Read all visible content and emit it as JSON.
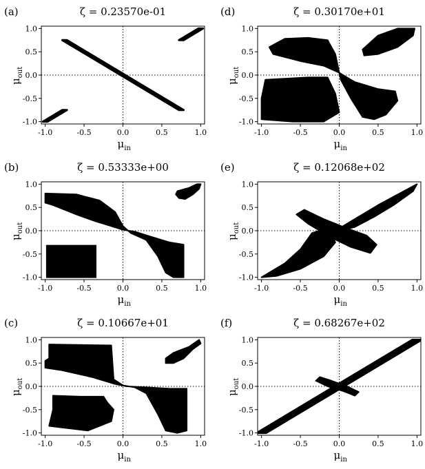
{
  "chart_data": [
    {
      "panel": "(a)",
      "type": "scatter",
      "title": "ζ = 0.23570e-01",
      "xlabel": "μ",
      "xlabel_sub": "in",
      "ylabel": "μ",
      "ylabel_sub": "out",
      "xlim": [
        -1.05,
        1.05
      ],
      "ylim": [
        -1.05,
        1.05
      ],
      "xticks": [
        -1.0,
        -0.5,
        0.0,
        0.5,
        1.0
      ],
      "yticks": [
        -1.0,
        -0.5,
        0.0,
        0.5,
        1.0
      ],
      "xtick_labels": [
        "-1.0",
        "-0.5",
        "0.0",
        "0.5",
        "1.0"
      ],
      "ytick_labels": [
        "-1.0",
        "-0.5",
        "0.0",
        "0.5",
        "1.0"
      ],
      "reference_lines": {
        "x": 0,
        "y": 0,
        "style": "dotted"
      },
      "regions": [
        {
          "kind": "band",
          "x": [
            -0.75,
            0.75
          ],
          "y": [
            0.75,
            -0.75
          ],
          "thickness": 0.06
        },
        {
          "kind": "band",
          "x": [
            0.75,
            1.0
          ],
          "y": [
            0.75,
            1.0
          ],
          "thickness": 0.06
        },
        {
          "kind": "band",
          "x": [
            -1.0,
            -0.75
          ],
          "y": [
            -1.0,
            -0.75
          ],
          "thickness": 0.06
        }
      ]
    },
    {
      "panel": "(b)",
      "type": "scatter",
      "title": "ζ = 0.53333e+00",
      "xlabel": "μ",
      "xlabel_sub": "in",
      "ylabel": "μ",
      "ylabel_sub": "out",
      "xlim": [
        -1.05,
        1.05
      ],
      "ylim": [
        -1.05,
        1.05
      ],
      "xticks": [
        -1.0,
        -0.5,
        0.0,
        0.5,
        1.0
      ],
      "yticks": [
        -1.0,
        -0.5,
        0.0,
        0.5,
        1.0
      ],
      "xtick_labels": [
        "-1.0",
        "-0.5",
        "0.0",
        "0.5",
        "1.0"
      ],
      "ytick_labels": [
        "-1.0",
        "-0.5",
        "0.0",
        "0.5",
        "1.0"
      ],
      "reference_lines": {
        "x": 0,
        "y": 0,
        "style": "dotted"
      },
      "regions": [
        {
          "kind": "polygon",
          "points": [
            [
              -1.0,
              0.8
            ],
            [
              -0.6,
              0.78
            ],
            [
              -0.3,
              0.65
            ],
            [
              -0.1,
              0.4
            ],
            [
              0.0,
              0.1
            ],
            [
              0.1,
              -0.05
            ],
            [
              0.3,
              -0.2
            ],
            [
              0.45,
              -0.55
            ],
            [
              0.55,
              -0.9
            ],
            [
              0.65,
              -1.0
            ],
            [
              0.78,
              -1.0
            ],
            [
              0.78,
              -0.3
            ],
            [
              0.6,
              -0.25
            ],
            [
              0.4,
              -0.15
            ],
            [
              0.15,
              -0.02
            ],
            [
              0.0,
              0.02
            ],
            [
              -0.15,
              0.1
            ],
            [
              -0.35,
              0.2
            ],
            [
              -0.6,
              0.35
            ],
            [
              -0.9,
              0.55
            ],
            [
              -1.0,
              0.6
            ]
          ]
        },
        {
          "kind": "rect",
          "x": [
            -0.98,
            -0.35
          ],
          "y": [
            -1.0,
            -0.32
          ]
        },
        {
          "kind": "polygon",
          "points": [
            [
              0.7,
              0.85
            ],
            [
              0.85,
              0.92
            ],
            [
              0.95,
              1.0
            ],
            [
              1.0,
              1.0
            ],
            [
              0.98,
              0.9
            ],
            [
              0.9,
              0.78
            ],
            [
              0.8,
              0.68
            ],
            [
              0.72,
              0.7
            ],
            [
              0.68,
              0.78
            ]
          ]
        }
      ]
    },
    {
      "panel": "(c)",
      "type": "scatter",
      "title": "ζ = 0.10667e+01",
      "xlabel": "μ",
      "xlabel_sub": "in",
      "ylabel": "μ",
      "ylabel_sub": "out",
      "xlim": [
        -1.05,
        1.05
      ],
      "ylim": [
        -1.05,
        1.05
      ],
      "xticks": [
        -1.0,
        -0.5,
        0.0,
        0.5,
        1.0
      ],
      "yticks": [
        -1.0,
        -0.5,
        0.0,
        0.5,
        1.0
      ],
      "xtick_labels": [
        "-1.0",
        "-0.5",
        "0.0",
        "0.5",
        "1.0"
      ],
      "ytick_labels": [
        "-1.0",
        "-0.5",
        "0.0",
        "0.5",
        "1.0"
      ],
      "reference_lines": {
        "x": 0,
        "y": 0,
        "style": "dotted"
      },
      "regions": [
        {
          "kind": "polygon",
          "points": [
            [
              -0.95,
              0.9
            ],
            [
              -0.15,
              0.88
            ],
            [
              -0.12,
              0.15
            ],
            [
              0.0,
              0.02
            ],
            [
              0.15,
              -0.02
            ],
            [
              0.3,
              -0.15
            ],
            [
              0.45,
              -0.6
            ],
            [
              0.55,
              -0.95
            ],
            [
              0.7,
              -1.0
            ],
            [
              0.82,
              -0.95
            ],
            [
              0.82,
              -0.05
            ],
            [
              0.6,
              -0.05
            ],
            [
              0.3,
              -0.02
            ],
            [
              0.05,
              0.0
            ],
            [
              -0.1,
              0.05
            ],
            [
              -0.4,
              0.2
            ],
            [
              -0.8,
              0.35
            ],
            [
              -1.0,
              0.4
            ],
            [
              -1.0,
              0.55
            ],
            [
              -0.95,
              0.6
            ]
          ]
        },
        {
          "kind": "polygon",
          "points": [
            [
              -0.9,
              -0.2
            ],
            [
              -0.55,
              -0.22
            ],
            [
              -0.25,
              -0.22
            ],
            [
              -0.2,
              -0.35
            ],
            [
              -0.12,
              -0.5
            ],
            [
              -0.15,
              -0.75
            ],
            [
              -0.3,
              -0.85
            ],
            [
              -0.45,
              -0.95
            ],
            [
              -0.7,
              -0.9
            ],
            [
              -0.95,
              -0.85
            ],
            [
              -0.9,
              -0.5
            ]
          ]
        },
        {
          "kind": "polygon",
          "points": [
            [
              0.55,
              0.6
            ],
            [
              0.65,
              0.72
            ],
            [
              0.85,
              0.85
            ],
            [
              0.98,
              1.0
            ],
            [
              1.0,
              0.92
            ],
            [
              0.9,
              0.8
            ],
            [
              0.78,
              0.6
            ],
            [
              0.65,
              0.5
            ],
            [
              0.55,
              0.5
            ]
          ]
        }
      ]
    },
    {
      "panel": "(d)",
      "type": "scatter",
      "title": "ζ = 0.30170e+01",
      "xlabel": "μ",
      "xlabel_sub": "in",
      "ylabel": "μ",
      "ylabel_sub": "out",
      "xlim": [
        -1.05,
        1.05
      ],
      "ylim": [
        -1.05,
        1.05
      ],
      "xticks": [
        -1.0,
        -0.5,
        0.0,
        0.5,
        1.0
      ],
      "yticks": [
        -1.0,
        -0.5,
        0.0,
        0.5,
        1.0
      ],
      "xtick_labels": [
        "-1.0",
        "-0.5",
        "0.0",
        "0.5",
        "1.0"
      ],
      "ytick_labels": [
        "-1.0",
        "-0.5",
        "0.0",
        "0.5",
        "1.0"
      ],
      "reference_lines": {
        "x": 0,
        "y": 0,
        "style": "dotted"
      },
      "regions": [
        {
          "kind": "polygon",
          "points": [
            [
              -0.9,
              0.6
            ],
            [
              -0.7,
              0.78
            ],
            [
              -0.4,
              0.8
            ],
            [
              -0.15,
              0.75
            ],
            [
              -0.05,
              0.45
            ],
            [
              0.0,
              0.05
            ],
            [
              -0.2,
              0.2
            ],
            [
              -0.5,
              0.3
            ],
            [
              -0.85,
              0.45
            ]
          ]
        },
        {
          "kind": "polygon",
          "points": [
            [
              -0.95,
              -0.1
            ],
            [
              -0.4,
              -0.05
            ],
            [
              -0.15,
              -0.05
            ],
            [
              -0.05,
              -0.4
            ],
            [
              0.0,
              -0.8
            ],
            [
              -0.2,
              -1.0
            ],
            [
              -0.6,
              -1.0
            ],
            [
              -1.0,
              -0.95
            ],
            [
              -1.0,
              -0.5
            ]
          ]
        },
        {
          "kind": "polygon",
          "points": [
            [
              0.0,
              0.05
            ],
            [
              0.2,
              -0.15
            ],
            [
              0.5,
              -0.3
            ],
            [
              0.72,
              -0.35
            ],
            [
              0.75,
              -0.55
            ],
            [
              0.6,
              -0.85
            ],
            [
              0.45,
              -0.95
            ],
            [
              0.3,
              -0.9
            ],
            [
              0.15,
              -0.5
            ],
            [
              0.02,
              -0.1
            ]
          ]
        },
        {
          "kind": "polygon",
          "points": [
            [
              0.3,
              0.55
            ],
            [
              0.5,
              0.85
            ],
            [
              0.75,
              1.0
            ],
            [
              0.97,
              1.0
            ],
            [
              0.95,
              0.85
            ],
            [
              0.75,
              0.6
            ],
            [
              0.5,
              0.45
            ],
            [
              0.32,
              0.42
            ]
          ]
        }
      ]
    },
    {
      "panel": "(e)",
      "type": "scatter",
      "title": "ζ = 0.12068e+02",
      "xlabel": "μ",
      "xlabel_sub": "in",
      "ylabel": "μ",
      "ylabel_sub": "out",
      "xlim": [
        -1.05,
        1.05
      ],
      "ylim": [
        -1.05,
        1.05
      ],
      "xticks": [
        -1.0,
        -0.5,
        0.0,
        0.5,
        1.0
      ],
      "yticks": [
        -1.0,
        -0.5,
        0.0,
        0.5,
        1.0
      ],
      "xtick_labels": [
        "-1.0",
        "-0.5",
        "0.0",
        "0.5",
        "1.0"
      ],
      "ytick_labels": [
        "-1.0",
        "-0.5",
        "0.0",
        "0.5",
        "1.0"
      ],
      "reference_lines": {
        "x": 0,
        "y": 0,
        "style": "dotted"
      },
      "regions": [
        {
          "kind": "polygon",
          "points": [
            [
              -1.0,
              -1.0
            ],
            [
              -0.7,
              -0.7
            ],
            [
              -0.5,
              -0.4
            ],
            [
              -0.35,
              -0.05
            ],
            [
              -0.15,
              0.05
            ],
            [
              -0.05,
              -0.25
            ],
            [
              -0.2,
              -0.55
            ],
            [
              -0.5,
              -0.82
            ],
            [
              -0.8,
              -0.97
            ]
          ]
        },
        {
          "kind": "polygon",
          "points": [
            [
              -0.55,
              0.35
            ],
            [
              -0.45,
              0.45
            ],
            [
              -0.2,
              0.25
            ],
            [
              0.1,
              0.05
            ],
            [
              0.35,
              -0.1
            ],
            [
              0.48,
              -0.3
            ],
            [
              0.4,
              -0.48
            ],
            [
              0.15,
              -0.35
            ],
            [
              -0.1,
              -0.15
            ],
            [
              -0.4,
              0.15
            ]
          ]
        },
        {
          "kind": "polygon",
          "points": [
            [
              0.05,
              0.1
            ],
            [
              0.25,
              0.3
            ],
            [
              0.5,
              0.55
            ],
            [
              0.8,
              0.82
            ],
            [
              1.0,
              1.0
            ],
            [
              0.95,
              0.85
            ],
            [
              0.7,
              0.55
            ],
            [
              0.45,
              0.3
            ],
            [
              0.2,
              0.08
            ],
            [
              0.05,
              0.02
            ]
          ]
        }
      ]
    },
    {
      "panel": "(f)",
      "type": "scatter",
      "title": "ζ = 0.68267e+02",
      "xlabel": "μ",
      "xlabel_sub": "in",
      "ylabel": "μ",
      "ylabel_sub": "out",
      "xlim": [
        -1.05,
        1.05
      ],
      "ylim": [
        -1.05,
        1.05
      ],
      "xticks": [
        -1.0,
        -0.5,
        0.0,
        0.5,
        1.0
      ],
      "yticks": [
        -1.0,
        -0.5,
        0.0,
        0.5,
        1.0
      ],
      "xtick_labels": [
        "-1.0",
        "-0.5",
        "0.0",
        "0.5",
        "1.0"
      ],
      "ytick_labels": [
        "-1.0",
        "-0.5",
        "0.0",
        "0.5",
        "1.0"
      ],
      "reference_lines": {
        "x": 0,
        "y": 0,
        "style": "dotted"
      },
      "regions": [
        {
          "kind": "band",
          "x": [
            -1.0,
            1.0
          ],
          "y": [
            -1.0,
            1.0
          ],
          "thickness": 0.12
        },
        {
          "kind": "polygon",
          "points": [
            [
              -0.25,
              0.2
            ],
            [
              -0.1,
              0.12
            ],
            [
              0.1,
              0.0
            ],
            [
              0.25,
              -0.12
            ],
            [
              0.2,
              -0.2
            ],
            [
              0.05,
              -0.1
            ],
            [
              -0.15,
              0.0
            ],
            [
              -0.3,
              0.12
            ]
          ]
        }
      ]
    }
  ]
}
